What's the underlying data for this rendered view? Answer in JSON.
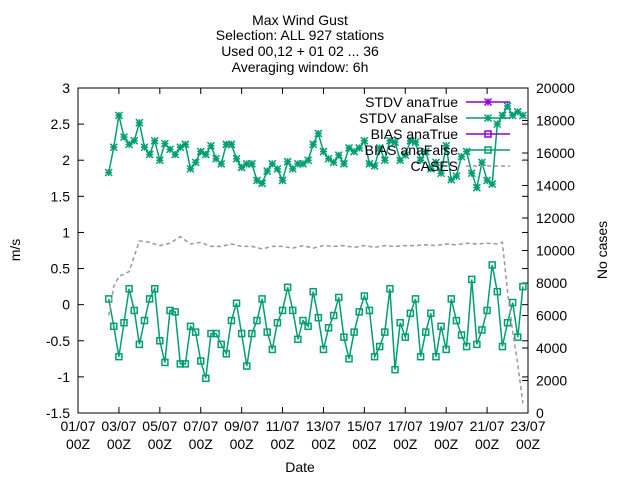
{
  "chart_data": {
    "type": "line",
    "title_lines": [
      "Max Wind Gust",
      "Selection: ALL     927 stations",
      "Used 00,12 + 01 02 ... 36",
      "Averaging window:  6h"
    ],
    "xlabel": "Date",
    "ylabel": "m/s",
    "y2label": "No cases",
    "x_ticks": [
      {
        "l1": "01/07",
        "l2": "00Z"
      },
      {
        "l1": "03/07",
        "l2": "00Z"
      },
      {
        "l1": "05/07",
        "l2": "00Z"
      },
      {
        "l1": "07/07",
        "l2": "00Z"
      },
      {
        "l1": "09/07",
        "l2": "00Z"
      },
      {
        "l1": "11/07",
        "l2": "00Z"
      },
      {
        "l1": "13/07",
        "l2": "00Z"
      },
      {
        "l1": "15/07",
        "l2": "00Z"
      },
      {
        "l1": "17/07",
        "l2": "00Z"
      },
      {
        "l1": "19/07",
        "l2": "00Z"
      },
      {
        "l1": "21/07",
        "l2": "00Z"
      },
      {
        "l1": "23/07",
        "l2": "00Z"
      }
    ],
    "xlim_days": [
      0,
      22
    ],
    "ylim": [
      -1.5,
      3
    ],
    "y_ticks": [
      "-1.5",
      "-1",
      "-0.5",
      "0",
      "0.5",
      "1",
      "1.5",
      "2",
      "2.5",
      "3"
    ],
    "y2lim": [
      0,
      20000
    ],
    "y2_ticks": [
      "0",
      "2000",
      "4000",
      "6000",
      "8000",
      "10000",
      "12000",
      "14000",
      "16000",
      "18000",
      "20000"
    ],
    "series": [
      {
        "name": "STDV anaTrue",
        "color": "#9400d3",
        "marker": "star",
        "values": []
      },
      {
        "name": "STDV anaFalse",
        "color": "#009e73",
        "marker": "star",
        "x": [
          1.5,
          1.75,
          2,
          2.25,
          2.5,
          2.75,
          3,
          3.25,
          3.5,
          3.75,
          4,
          4.25,
          4.5,
          4.75,
          5,
          5.25,
          5.5,
          5.75,
          6,
          6.25,
          6.5,
          6.75,
          7,
          7.25,
          7.5,
          7.75,
          8,
          8.25,
          8.5,
          8.75,
          9,
          9.25,
          9.5,
          9.75,
          10,
          10.25,
          10.5,
          10.75,
          11,
          11.25,
          11.5,
          11.75,
          12,
          12.25,
          12.5,
          12.75,
          13,
          13.25,
          13.5,
          13.75,
          14,
          14.25,
          14.5,
          14.75,
          15,
          15.25,
          15.5,
          15.75,
          16,
          16.25,
          16.5,
          16.75,
          17,
          17.25,
          17.5,
          17.75,
          18,
          18.25,
          18.5,
          18.75,
          19,
          19.25,
          19.5,
          19.75,
          20,
          20.25,
          20.5,
          20.75,
          21,
          21.25,
          21.5,
          21.75
        ],
        "y": [
          1.83,
          2.18,
          2.62,
          2.32,
          2.22,
          2.27,
          2.52,
          2.18,
          2.08,
          2.27,
          2.0,
          2.23,
          2.15,
          2.08,
          2.18,
          2.22,
          1.88,
          1.97,
          2.12,
          2.08,
          2.2,
          2.02,
          1.95,
          2.22,
          2.22,
          2.02,
          1.9,
          1.95,
          1.95,
          1.72,
          1.68,
          1.85,
          1.95,
          1.88,
          1.72,
          1.98,
          1.88,
          1.95,
          1.95,
          2.0,
          2.22,
          2.37,
          2.12,
          2.02,
          1.97,
          2.07,
          1.95,
          2.17,
          2.12,
          2.17,
          2.27,
          1.95,
          1.92,
          2.17,
          2.0,
          2.27,
          2.25,
          2.0,
          2.07,
          2.27,
          2.25,
          2.0,
          2.12,
          1.88,
          1.97,
          1.82,
          2.2,
          1.73,
          1.78,
          2.05,
          2.12,
          1.82,
          1.62,
          1.97,
          1.72,
          1.67,
          2.5,
          2.62,
          2.75,
          2.62,
          2.67,
          2.62
        ]
      },
      {
        "name": "BIAS anaTrue",
        "color": "#9400d3",
        "marker": "square",
        "values": []
      },
      {
        "name": "BIAS anaFalse",
        "color": "#009e73",
        "marker": "square",
        "x": [
          1.5,
          1.75,
          2,
          2.25,
          2.5,
          2.75,
          3,
          3.25,
          3.5,
          3.75,
          4,
          4.25,
          4.5,
          4.75,
          5,
          5.25,
          5.5,
          5.75,
          6,
          6.25,
          6.5,
          6.75,
          7,
          7.25,
          7.5,
          7.75,
          8,
          8.25,
          8.5,
          8.75,
          9,
          9.25,
          9.5,
          9.75,
          10,
          10.25,
          10.5,
          10.75,
          11,
          11.25,
          11.5,
          11.75,
          12,
          12.25,
          12.5,
          12.75,
          13,
          13.25,
          13.5,
          13.75,
          14,
          14.25,
          14.5,
          14.75,
          15,
          15.25,
          15.5,
          15.75,
          16,
          16.25,
          16.5,
          16.75,
          17,
          17.25,
          17.5,
          17.75,
          18,
          18.25,
          18.5,
          18.75,
          19,
          19.25,
          19.5,
          19.75,
          20,
          20.25,
          20.5,
          20.75,
          21,
          21.25,
          21.5,
          21.75
        ],
        "y": [
          0.08,
          -0.3,
          -0.72,
          -0.25,
          0.22,
          -0.08,
          -0.55,
          -0.22,
          0.08,
          0.22,
          -0.5,
          -0.8,
          -0.08,
          -0.1,
          -0.82,
          -0.82,
          -0.3,
          -0.38,
          -0.78,
          -1.02,
          -0.4,
          -0.4,
          -0.55,
          -0.68,
          -0.22,
          0.02,
          -0.4,
          -0.85,
          -0.4,
          -0.22,
          0.08,
          -0.38,
          -0.62,
          -0.25,
          -0.08,
          0.24,
          -0.08,
          -0.48,
          -0.22,
          -0.3,
          0.18,
          -0.18,
          -0.62,
          -0.32,
          -0.15,
          0.1,
          -0.45,
          -0.75,
          -0.38,
          -0.1,
          0.12,
          -0.08,
          -0.72,
          -0.58,
          -0.38,
          0.22,
          -0.9,
          -0.25,
          -0.45,
          -0.12,
          0.08,
          -0.72,
          -0.38,
          -0.12,
          -0.72,
          -0.3,
          -0.62,
          0.08,
          -0.22,
          -0.42,
          -0.58,
          0.35,
          -0.55,
          -0.35,
          -0.08,
          0.55,
          0.18,
          -0.58,
          -0.25,
          0.03,
          -0.45,
          0.25
        ]
      },
      {
        "name": "CASES",
        "color": "#999999",
        "marker": "dashed",
        "axis": "y2",
        "x": [
          1.5,
          1.75,
          2,
          2.5,
          3,
          3.5,
          4,
          4.5,
          5,
          5.5,
          6,
          6.5,
          7,
          7.5,
          8,
          8.5,
          9,
          9.5,
          10,
          10.5,
          11,
          11.5,
          12,
          12.5,
          13,
          13.5,
          14,
          14.5,
          15,
          15.5,
          16,
          16.5,
          17,
          17.5,
          18,
          18.5,
          19,
          19.5,
          20,
          20.5,
          20.75,
          21,
          21.25,
          21.5,
          21.75
        ],
        "y": [
          6000,
          7800,
          8400,
          8700,
          10600,
          10500,
          10300,
          10450,
          10850,
          10400,
          10500,
          10250,
          10250,
          10400,
          10250,
          10250,
          10100,
          10250,
          10250,
          10150,
          10300,
          10150,
          10300,
          10250,
          10300,
          10200,
          10300,
          10200,
          10300,
          10250,
          10300,
          10300,
          10350,
          10300,
          10400,
          10350,
          10450,
          10400,
          10450,
          10400,
          10500,
          7500,
          5000,
          3000,
          600
        ]
      }
    ],
    "y2_series": {
      "name": "CASES",
      "x": [
        21.75,
        22.0
      ],
      "y": [
        15600,
        15600
      ],
      "note": ""
    },
    "legend_position": "top-right",
    "grid": false
  }
}
